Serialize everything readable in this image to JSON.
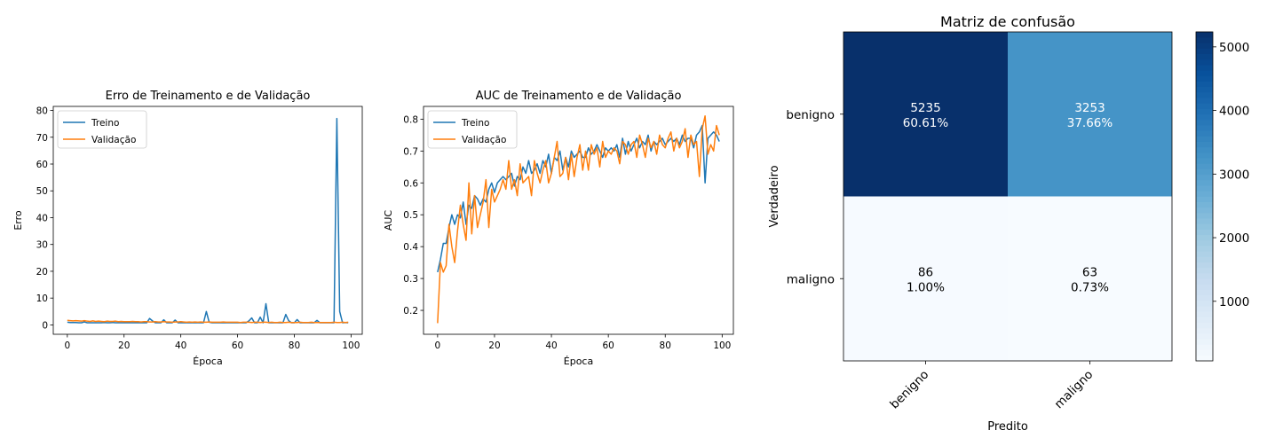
{
  "chart_data": [
    {
      "type": "line",
      "title": "Erro de Treinamento e de Validação",
      "xlabel": "Época",
      "ylabel": "Erro",
      "xlim": [
        -4.95,
        103.95
      ],
      "ylim": [
        -3.5,
        81.5
      ],
      "xticks": [
        0,
        20,
        40,
        60,
        80,
        100
      ],
      "yticks": [
        0,
        10,
        20,
        30,
        40,
        50,
        60,
        70,
        80
      ],
      "legend_position": "upper-left",
      "series": [
        {
          "name": "Treino",
          "color": "#1f77b4",
          "x": [
            0,
            1,
            2,
            3,
            4,
            5,
            6,
            7,
            8,
            9,
            10,
            11,
            12,
            13,
            14,
            15,
            16,
            17,
            18,
            19,
            20,
            21,
            22,
            23,
            24,
            25,
            26,
            27,
            28,
            29,
            30,
            31,
            32,
            33,
            34,
            35,
            36,
            37,
            38,
            39,
            40,
            41,
            42,
            43,
            44,
            45,
            46,
            47,
            48,
            49,
            50,
            51,
            52,
            53,
            54,
            55,
            56,
            57,
            58,
            59,
            60,
            61,
            62,
            63,
            64,
            65,
            66,
            67,
            68,
            69,
            70,
            71,
            72,
            73,
            74,
            75,
            76,
            77,
            78,
            79,
            80,
            81,
            82,
            83,
            84,
            85,
            86,
            87,
            88,
            89,
            90,
            91,
            92,
            93,
            94,
            95,
            96,
            97,
            98,
            99
          ],
          "y": [
            1.0,
            0.9,
            0.9,
            0.9,
            0.8,
            0.8,
            1.1,
            0.8,
            0.8,
            0.8,
            0.8,
            0.8,
            0.8,
            0.9,
            0.8,
            0.8,
            0.9,
            0.8,
            0.8,
            0.8,
            0.8,
            0.8,
            0.8,
            0.8,
            0.8,
            0.8,
            0.8,
            0.8,
            0.8,
            2.4,
            1.5,
            0.8,
            0.8,
            0.8,
            1.9,
            0.8,
            0.8,
            0.8,
            1.8,
            0.8,
            0.8,
            0.8,
            0.8,
            0.8,
            0.8,
            0.8,
            0.8,
            0.8,
            0.8,
            5.0,
            1.0,
            0.8,
            0.8,
            0.8,
            0.8,
            0.8,
            0.8,
            0.8,
            0.8,
            0.8,
            0.8,
            0.8,
            0.8,
            0.8,
            1.5,
            2.6,
            0.8,
            0.8,
            2.9,
            0.8,
            7.9,
            0.8,
            0.8,
            0.8,
            0.8,
            0.8,
            0.8,
            3.9,
            1.6,
            0.8,
            0.8,
            2.0,
            0.8,
            0.8,
            0.8,
            0.8,
            0.8,
            0.8,
            1.7,
            0.8,
            0.8,
            0.8,
            0.8,
            0.8,
            0.8,
            77.0,
            5.0,
            0.8,
            0.9,
            0.8
          ]
        },
        {
          "name": "Validação",
          "color": "#ff7f0e",
          "x": [
            0,
            1,
            2,
            3,
            4,
            5,
            6,
            7,
            8,
            9,
            10,
            11,
            12,
            13,
            14,
            15,
            16,
            17,
            18,
            19,
            20,
            21,
            22,
            23,
            24,
            25,
            26,
            27,
            28,
            29,
            30,
            31,
            32,
            33,
            34,
            35,
            36,
            37,
            38,
            39,
            40,
            41,
            42,
            43,
            44,
            45,
            46,
            47,
            48,
            49,
            50,
            51,
            52,
            53,
            54,
            55,
            56,
            57,
            58,
            59,
            60,
            61,
            62,
            63,
            64,
            65,
            66,
            67,
            68,
            69,
            70,
            71,
            72,
            73,
            74,
            75,
            76,
            77,
            78,
            79,
            80,
            81,
            82,
            83,
            84,
            85,
            86,
            87,
            88,
            89,
            90,
            91,
            92,
            93,
            94,
            95,
            96,
            97,
            98,
            99
          ],
          "y": [
            1.7,
            1.6,
            1.5,
            1.6,
            1.5,
            1.4,
            1.6,
            1.4,
            1.3,
            1.5,
            1.3,
            1.4,
            1.3,
            1.2,
            1.4,
            1.3,
            1.3,
            1.4,
            1.2,
            1.3,
            1.2,
            1.2,
            1.2,
            1.3,
            1.2,
            1.2,
            1.1,
            1.2,
            1.2,
            1.1,
            1.1,
            1.2,
            1.1,
            1.1,
            1.2,
            1.1,
            1.1,
            1.0,
            1.1,
            1.1,
            1.2,
            1.1,
            1.0,
            1.1,
            1.0,
            1.1,
            1.0,
            1.1,
            1.0,
            1.0,
            1.1,
            1.0,
            1.0,
            1.0,
            1.0,
            1.1,
            1.0,
            1.0,
            1.0,
            1.0,
            1.0,
            0.9,
            1.0,
            1.0,
            1.0,
            0.9,
            1.0,
            1.0,
            0.9,
            1.0,
            1.0,
            0.9,
            1.0,
            0.9,
            0.9,
            1.0,
            0.9,
            0.9,
            1.0,
            0.9,
            0.9,
            0.9,
            1.0,
            0.9,
            0.9,
            0.9,
            1.0,
            0.9,
            0.9,
            0.9,
            0.9,
            0.9,
            0.9,
            0.9,
            1.0,
            0.9,
            0.9,
            1.0,
            0.9,
            1.0
          ]
        }
      ]
    },
    {
      "type": "line",
      "title": "AUC de Treinamento e de Validação",
      "xlabel": "Época",
      "ylabel": "AUC",
      "xlim": [
        -4.95,
        103.95
      ],
      "ylim": [
        0.125,
        0.84
      ],
      "xticks": [
        0,
        20,
        40,
        60,
        80,
        100
      ],
      "yticks": [
        0.2,
        0.3,
        0.4,
        0.5,
        0.6,
        0.7,
        0.8
      ],
      "legend_position": "upper-left",
      "series": [
        {
          "name": "Treino",
          "color": "#1f77b4",
          "x": [
            0,
            1,
            2,
            3,
            4,
            5,
            6,
            7,
            8,
            9,
            10,
            11,
            12,
            13,
            14,
            15,
            16,
            17,
            18,
            19,
            20,
            21,
            22,
            23,
            24,
            25,
            26,
            27,
            28,
            29,
            30,
            31,
            32,
            33,
            34,
            35,
            36,
            37,
            38,
            39,
            40,
            41,
            42,
            43,
            44,
            45,
            46,
            47,
            48,
            49,
            50,
            51,
            52,
            53,
            54,
            55,
            56,
            57,
            58,
            59,
            60,
            61,
            62,
            63,
            64,
            65,
            66,
            67,
            68,
            69,
            70,
            71,
            72,
            73,
            74,
            75,
            76,
            77,
            78,
            79,
            80,
            81,
            82,
            83,
            84,
            85,
            86,
            87,
            88,
            89,
            90,
            91,
            92,
            93,
            94,
            95,
            96,
            97,
            98,
            99
          ],
          "y": [
            0.32,
            0.36,
            0.41,
            0.41,
            0.46,
            0.5,
            0.47,
            0.5,
            0.49,
            0.54,
            0.47,
            0.53,
            0.52,
            0.56,
            0.55,
            0.53,
            0.55,
            0.54,
            0.58,
            0.6,
            0.57,
            0.6,
            0.61,
            0.62,
            0.61,
            0.62,
            0.63,
            0.59,
            0.62,
            0.61,
            0.65,
            0.63,
            0.67,
            0.63,
            0.64,
            0.66,
            0.63,
            0.67,
            0.65,
            0.69,
            0.63,
            0.68,
            0.67,
            0.7,
            0.64,
            0.68,
            0.65,
            0.7,
            0.68,
            0.69,
            0.7,
            0.68,
            0.68,
            0.71,
            0.69,
            0.7,
            0.72,
            0.7,
            0.68,
            0.71,
            0.7,
            0.71,
            0.7,
            0.72,
            0.68,
            0.74,
            0.69,
            0.73,
            0.7,
            0.72,
            0.74,
            0.71,
            0.73,
            0.72,
            0.75,
            0.7,
            0.73,
            0.72,
            0.73,
            0.74,
            0.72,
            0.73,
            0.74,
            0.73,
            0.74,
            0.72,
            0.75,
            0.73,
            0.74,
            0.74,
            0.71,
            0.75,
            0.76,
            0.78,
            0.6,
            0.74,
            0.75,
            0.76,
            0.75,
            0.73
          ]
        },
        {
          "name": "Validação",
          "color": "#ff7f0e",
          "x": [
            0,
            1,
            2,
            3,
            4,
            5,
            6,
            7,
            8,
            9,
            10,
            11,
            12,
            13,
            14,
            15,
            16,
            17,
            18,
            19,
            20,
            21,
            22,
            23,
            24,
            25,
            26,
            27,
            28,
            29,
            30,
            31,
            32,
            33,
            34,
            35,
            36,
            37,
            38,
            39,
            40,
            41,
            42,
            43,
            44,
            45,
            46,
            47,
            48,
            49,
            50,
            51,
            52,
            53,
            54,
            55,
            56,
            57,
            58,
            59,
            60,
            61,
            62,
            63,
            64,
            65,
            66,
            67,
            68,
            69,
            70,
            71,
            72,
            73,
            74,
            75,
            76,
            77,
            78,
            79,
            80,
            81,
            82,
            83,
            84,
            85,
            86,
            87,
            88,
            89,
            90,
            91,
            92,
            93,
            94,
            95,
            96,
            97,
            98,
            99
          ],
          "y": [
            0.16,
            0.35,
            0.32,
            0.34,
            0.47,
            0.4,
            0.35,
            0.45,
            0.53,
            0.47,
            0.42,
            0.6,
            0.44,
            0.56,
            0.46,
            0.5,
            0.54,
            0.61,
            0.46,
            0.58,
            0.54,
            0.56,
            0.58,
            0.61,
            0.58,
            0.67,
            0.58,
            0.61,
            0.56,
            0.66,
            0.6,
            0.61,
            0.62,
            0.56,
            0.67,
            0.63,
            0.6,
            0.64,
            0.67,
            0.6,
            0.63,
            0.68,
            0.73,
            0.62,
            0.63,
            0.68,
            0.61,
            0.69,
            0.62,
            0.68,
            0.72,
            0.64,
            0.7,
            0.64,
            0.72,
            0.69,
            0.71,
            0.65,
            0.73,
            0.68,
            0.7,
            0.69,
            0.71,
            0.7,
            0.66,
            0.73,
            0.72,
            0.69,
            0.72,
            0.73,
            0.68,
            0.75,
            0.72,
            0.68,
            0.74,
            0.71,
            0.73,
            0.69,
            0.75,
            0.72,
            0.71,
            0.74,
            0.76,
            0.7,
            0.74,
            0.71,
            0.73,
            0.77,
            0.68,
            0.75,
            0.72,
            0.73,
            0.62,
            0.77,
            0.81,
            0.69,
            0.72,
            0.7,
            0.78,
            0.75
          ]
        }
      ]
    },
    {
      "type": "heatmap",
      "title": "Matriz de confusão",
      "xlabel": "Predito",
      "ylabel": "Verdadeiro",
      "row_labels": [
        "benigno",
        "maligno"
      ],
      "col_labels": [
        "benigno",
        "maligno"
      ],
      "counts": [
        [
          5235,
          3253
        ],
        [
          86,
          63
        ]
      ],
      "percents": [
        [
          "60.61%",
          "37.66%"
        ],
        [
          "1.00%",
          "0.73%"
        ]
      ],
      "colormap": "Blues",
      "colorbar_range": [
        63,
        5235
      ],
      "colorbar_ticks": [
        1000,
        2000,
        3000,
        4000,
        5000
      ]
    }
  ]
}
